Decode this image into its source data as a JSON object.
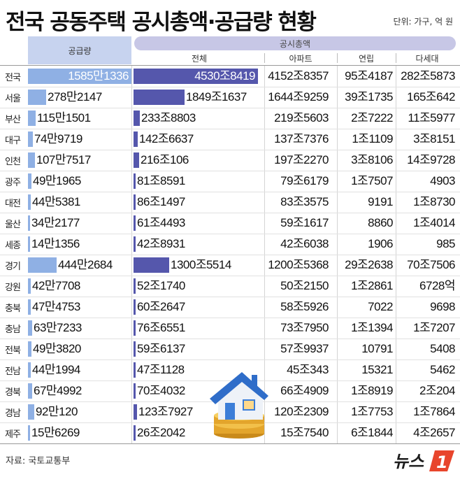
{
  "title": "전국 공동주택 공시총액·공급량 현황",
  "unit": "단위: 가구, 억 원",
  "source": "자료: 국토교통부",
  "logo": {
    "text": "뉴스1",
    "accent": "#e8452c"
  },
  "colors": {
    "supply_bar": "#8fb0e4",
    "total_bar": "#5557ac",
    "supply_header": "#c7d3ef",
    "total_header": "#c7c7e6"
  },
  "chart_data": {
    "type": "table",
    "headers": {
      "supply": "공급량",
      "group": "공시총액",
      "total": "전체",
      "apt": "아파트",
      "rowhouse": "연립",
      "multi": "다세대"
    },
    "rows": [
      {
        "region": "전국",
        "supply": "1585만1336",
        "total": "4530조8419",
        "apt": "4152조8357",
        "rowhouse": "95조4187",
        "multi": "282조5873",
        "supply_value": 15851336,
        "total_value": 45308419
      },
      {
        "region": "서울",
        "supply": "278만2147",
        "total": "1849조1637",
        "apt": "1644조9259",
        "rowhouse": "39조1735",
        "multi": "165조642",
        "supply_value": 2782147,
        "total_value": 18491637
      },
      {
        "region": "부산",
        "supply": "115만1501",
        "total": "233조8803",
        "apt": "219조5603",
        "rowhouse": "2조7222",
        "multi": "11조5977",
        "supply_value": 1151501,
        "total_value": 2338803
      },
      {
        "region": "대구",
        "supply": "74만9719",
        "total": "142조6637",
        "apt": "137조7376",
        "rowhouse": "1조1109",
        "multi": "3조8151",
        "supply_value": 749719,
        "total_value": 1426637
      },
      {
        "region": "인천",
        "supply": "107만7517",
        "total": "216조106",
        "apt": "197조2270",
        "rowhouse": "3조8106",
        "multi": "14조9728",
        "supply_value": 1077517,
        "total_value": 2160106
      },
      {
        "region": "광주",
        "supply": "49만1965",
        "total": "81조8591",
        "apt": "79조6179",
        "rowhouse": "1조7507",
        "multi": "4903",
        "supply_value": 491965,
        "total_value": 818591
      },
      {
        "region": "대전",
        "supply": "44만5381",
        "total": "86조1497",
        "apt": "83조3575",
        "rowhouse": "9191",
        "multi": "1조8730",
        "supply_value": 445381,
        "total_value": 861497
      },
      {
        "region": "울산",
        "supply": "34만2177",
        "total": "61조4493",
        "apt": "59조1617",
        "rowhouse": "8860",
        "multi": "1조4014",
        "supply_value": 342177,
        "total_value": 614493
      },
      {
        "region": "세종",
        "supply": "14만1356",
        "total": "42조8931",
        "apt": "42조6038",
        "rowhouse": "1906",
        "multi": "985",
        "supply_value": 141356,
        "total_value": 428931
      },
      {
        "region": "경기",
        "supply": "444만2684",
        "total": "1300조5514",
        "apt": "1200조5368",
        "rowhouse": "29조2638",
        "multi": "70조7506",
        "supply_value": 4442684,
        "total_value": 13005514
      },
      {
        "region": "강원",
        "supply": "42만7708",
        "total": "52조1740",
        "apt": "50조2150",
        "rowhouse": "1조2861",
        "multi": "6728억",
        "supply_value": 427708,
        "total_value": 521740
      },
      {
        "region": "충북",
        "supply": "47만4753",
        "total": "60조2647",
        "apt": "58조5926",
        "rowhouse": "7022",
        "multi": "9698",
        "supply_value": 474753,
        "total_value": 602647
      },
      {
        "region": "충남",
        "supply": "63만7233",
        "total": "76조6551",
        "apt": "73조7950",
        "rowhouse": "1조1394",
        "multi": "1조7207",
        "supply_value": 637233,
        "total_value": 766551
      },
      {
        "region": "전북",
        "supply": "49만3820",
        "total": "59조6137",
        "apt": "57조9937",
        "rowhouse": "10791",
        "multi": "5408",
        "supply_value": 493820,
        "total_value": 596137
      },
      {
        "region": "전남",
        "supply": "44만1994",
        "total": "47조1128",
        "apt": "45조343",
        "rowhouse": "15321",
        "multi": "5462",
        "supply_value": 441994,
        "total_value": 471128
      },
      {
        "region": "경북",
        "supply": "67만4992",
        "total": "70조4032",
        "apt": "66조4909",
        "rowhouse": "1조8919",
        "multi": "2조204",
        "supply_value": 674992,
        "total_value": 704032
      },
      {
        "region": "경남",
        "supply": "92만120",
        "total": "123조7927",
        "apt": "120조2309",
        "rowhouse": "1조7753",
        "multi": "1조7864",
        "supply_value": 920120,
        "total_value": 1237927
      },
      {
        "region": "제주",
        "supply": "15만6269",
        "total": "26조2042",
        "apt": "15조7540",
        "rowhouse": "6조1844",
        "multi": "4조2657",
        "supply_value": 156269,
        "total_value": 262042
      }
    ]
  }
}
